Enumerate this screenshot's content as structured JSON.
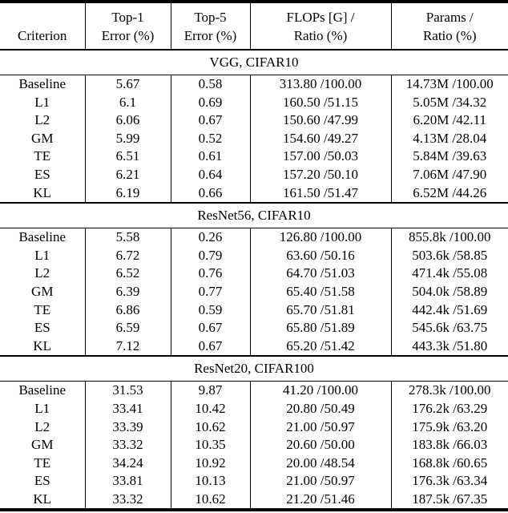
{
  "table": {
    "headers": {
      "criterion": "Criterion",
      "top1_line1": "Top-1",
      "top1_line2": "Error (%)",
      "top5_line1": "Top-5",
      "top5_line2": "Error (%)",
      "flops_line1": "FLOPs [G] /",
      "flops_line2": "Ratio (%)",
      "params_line1": "Params /",
      "params_line2": "Ratio (%)"
    },
    "sections": [
      {
        "title": "VGG, CIFAR10",
        "rows": [
          {
            "criterion": "Baseline",
            "top1": "5.67",
            "top5": "0.58",
            "flops": "313.80 /100.00",
            "params": "14.73M /100.00"
          },
          {
            "criterion": "L1",
            "top1": "6.1",
            "top5": "0.69",
            "flops": "160.50 /51.15",
            "params": "5.05M /34.32"
          },
          {
            "criterion": "L2",
            "top1": "6.06",
            "top5": "0.67",
            "flops": "150.60 /47.99",
            "params": "6.20M /42.11"
          },
          {
            "criterion": "GM",
            "top1": "5.99",
            "top5": "0.52",
            "flops": "154.60 /49.27",
            "params": "4.13M /28.04"
          },
          {
            "criterion": "TE",
            "top1": "6.51",
            "top5": "0.61",
            "flops": "157.00 /50.03",
            "params": "5.84M /39.63"
          },
          {
            "criterion": "ES",
            "top1": "6.21",
            "top5": "0.64",
            "flops": "157.20 /50.10",
            "params": "7.06M /47.90"
          },
          {
            "criterion": "KL",
            "top1": "6.19",
            "top5": "0.66",
            "flops": "161.50 /51.47",
            "params": "6.52M /44.26"
          }
        ]
      },
      {
        "title": "ResNet56, CIFAR10",
        "rows": [
          {
            "criterion": "Baseline",
            "top1": "5.58",
            "top5": "0.26",
            "flops": "126.80 /100.00",
            "params": "855.8k /100.00"
          },
          {
            "criterion": "L1",
            "top1": "6.72",
            "top5": "0.79",
            "flops": "63.60 /50.16",
            "params": "503.6k /58.85"
          },
          {
            "criterion": "L2",
            "top1": "6.52",
            "top5": "0.76",
            "flops": "64.70 /51.03",
            "params": "471.4k /55.08"
          },
          {
            "criterion": "GM",
            "top1": "6.39",
            "top5": "0.77",
            "flops": "65.40 /51.58",
            "params": "504.0k /58.89"
          },
          {
            "criterion": "TE",
            "top1": "6.86",
            "top5": "0.59",
            "flops": "65.70 /51.81",
            "params": "442.4k /51.69"
          },
          {
            "criterion": "ES",
            "top1": "6.59",
            "top5": "0.67",
            "flops": "65.80 /51.89",
            "params": "545.6k /63.75"
          },
          {
            "criterion": "KL",
            "top1": "7.12",
            "top5": "0.67",
            "flops": "65.20 /51.42",
            "params": "443.3k /51.80"
          }
        ]
      },
      {
        "title": "ResNet20, CIFAR100",
        "rows": [
          {
            "criterion": "Baseline",
            "top1": "31.53",
            "top5": "9.87",
            "flops": "41.20 /100.00",
            "params": "278.3k /100.00"
          },
          {
            "criterion": "L1",
            "top1": "33.41",
            "top5": "10.42",
            "flops": "20.80 /50.49",
            "params": "176.2k /63.29"
          },
          {
            "criterion": "L2",
            "top1": "33.39",
            "top5": "10.62",
            "flops": "21.00 /50.97",
            "params": "175.9k /63.20"
          },
          {
            "criterion": "GM",
            "top1": "33.32",
            "top5": "10.35",
            "flops": "20.60 /50.00",
            "params": "183.8k /66.03"
          },
          {
            "criterion": "TE",
            "top1": "34.24",
            "top5": "10.92",
            "flops": "20.00 /48.54",
            "params": "168.8k /60.65"
          },
          {
            "criterion": "ES",
            "top1": "33.81",
            "top5": "10.13",
            "flops": "21.00 /50.97",
            "params": "176.3k /63.34"
          },
          {
            "criterion": "KL",
            "top1": "33.32",
            "top5": "10.62",
            "flops": "21.20 /51.46",
            "params": "187.5k /67.35"
          }
        ]
      }
    ]
  }
}
